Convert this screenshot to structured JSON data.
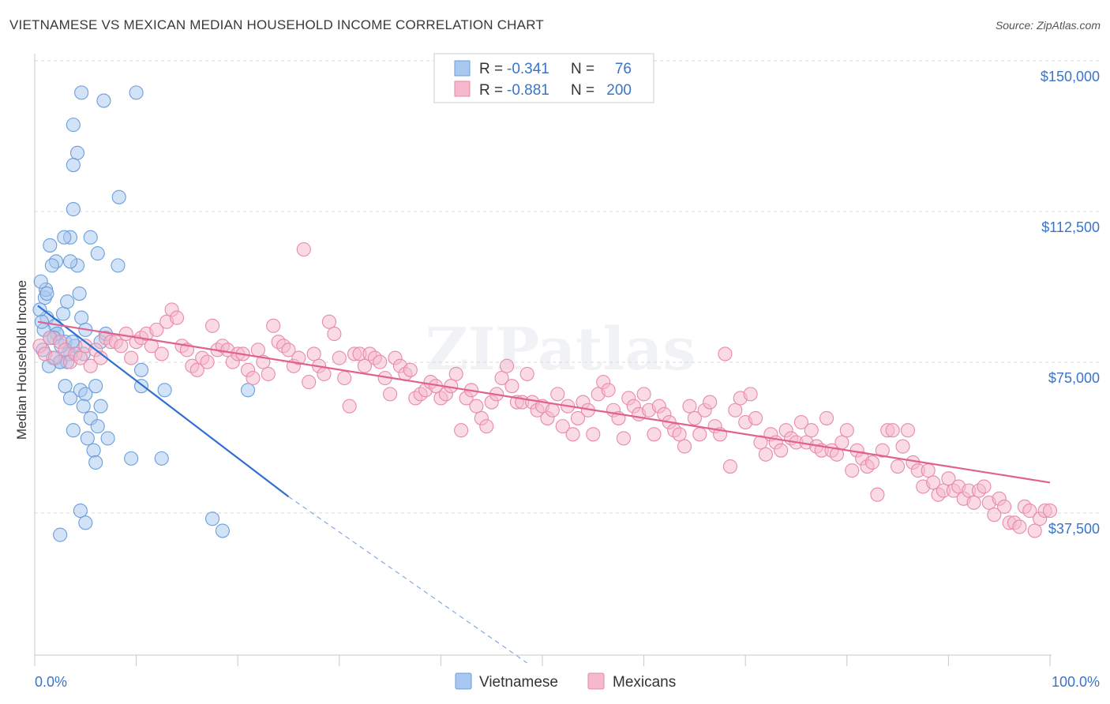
{
  "title": "VIETNAMESE VS MEXICAN MEDIAN HOUSEHOLD INCOME CORRELATION CHART",
  "source": "Source: ZipAtlas.com",
  "watermark": "ZIPatlas",
  "colors": {
    "blue_fill": "#a8c8f0",
    "blue_stroke": "#6a9edb",
    "blue_line": "#2f6fd1",
    "pink_fill": "#f6b8cc",
    "pink_stroke": "#e88aa8",
    "pink_line": "#e0628c",
    "tick_blue": "#3a74c9",
    "grid": "#d9d9d9"
  },
  "legend": {
    "rows": [
      {
        "r_label": "R = ",
        "r_value": "-0.341",
        "n_label": "N = ",
        "n_value": " 76",
        "series": "Vietnamese"
      },
      {
        "r_label": "R = ",
        "r_value": "-0.881",
        "n_label": "N = ",
        "n_value": "200",
        "series": "Mexicans"
      }
    ]
  },
  "bottom_legend": [
    "Vietnamese",
    "Mexicans"
  ],
  "chart_data": {
    "type": "scatter",
    "title": "VIETNAMESE VS MEXICAN MEDIAN HOUSEHOLD INCOME CORRELATION CHART",
    "xlabel": "",
    "ylabel": "Median Household Income",
    "xlim": [
      0,
      100
    ],
    "ylim": [
      0,
      155000
    ],
    "y_ticks": [
      {
        "value": 37500,
        "label": "$37,500"
      },
      {
        "value": 75000,
        "label": "$75,000"
      },
      {
        "value": 112500,
        "label": "$112,500"
      },
      {
        "value": 150000,
        "label": "$150,000"
      }
    ],
    "x_tick_labels": [
      {
        "value": 0,
        "label": "0.0%"
      },
      {
        "value": 100,
        "label": "100.0%"
      }
    ],
    "x_minor_ticks": [
      0,
      10,
      20,
      30,
      40,
      50,
      60,
      70,
      80,
      90,
      100
    ],
    "series": [
      {
        "name": "Vietnamese",
        "r": -0.341,
        "n": 76,
        "trend": {
          "x0": 0.3,
          "y0": 93000,
          "x1": 25,
          "y1": 45500,
          "dash_to_x": 48.5,
          "dash_to_y": 0
        },
        "points": [
          [
            1.2,
            90000
          ],
          [
            1.5,
            85000
          ],
          [
            0.8,
            82000
          ],
          [
            2.0,
            88000
          ],
          [
            1.0,
            95000
          ],
          [
            2.5,
            79000
          ],
          [
            3.0,
            84000
          ],
          [
            1.8,
            80000
          ],
          [
            0.5,
            92000
          ],
          [
            2.2,
            86000
          ],
          [
            3.5,
            81000
          ],
          [
            1.4,
            78000
          ],
          [
            0.9,
            87000
          ],
          [
            2.8,
            91000
          ],
          [
            4.0,
            83000
          ],
          [
            1.1,
            97000
          ],
          [
            0.6,
            99000
          ],
          [
            2.1,
            104000
          ],
          [
            1.7,
            103000
          ],
          [
            3.5,
            110000
          ],
          [
            2.9,
            110000
          ],
          [
            1.5,
            108000
          ],
          [
            4.2,
            103000
          ],
          [
            3.5,
            104000
          ],
          [
            5.5,
            110000
          ],
          [
            6.2,
            106000
          ],
          [
            8.2,
            103000
          ],
          [
            3.8,
            138000
          ],
          [
            6.8,
            144000
          ],
          [
            1.2,
            96000
          ],
          [
            3.2,
            94000
          ],
          [
            4.4,
            96000
          ],
          [
            4.6,
            90000
          ],
          [
            3.8,
            117000
          ],
          [
            4.2,
            131000
          ],
          [
            3.8,
            128000
          ],
          [
            10.0,
            146000
          ],
          [
            4.6,
            146000
          ],
          [
            8.3,
            120000
          ],
          [
            2.2,
            86000
          ],
          [
            5.0,
            87000
          ],
          [
            3.7,
            84000
          ],
          [
            3.3,
            81000
          ],
          [
            4.8,
            81000
          ],
          [
            6.5,
            84000
          ],
          [
            7.0,
            86000
          ],
          [
            3.2,
            79000
          ],
          [
            2.5,
            79000
          ],
          [
            3.0,
            73000
          ],
          [
            4.5,
            72000
          ],
          [
            5.0,
            71000
          ],
          [
            6.0,
            73000
          ],
          [
            3.5,
            70000
          ],
          [
            4.8,
            68000
          ],
          [
            6.5,
            68000
          ],
          [
            5.5,
            65000
          ],
          [
            6.2,
            63000
          ],
          [
            3.8,
            62000
          ],
          [
            5.2,
            60000
          ],
          [
            7.2,
            60000
          ],
          [
            5.8,
            57000
          ],
          [
            6.0,
            54000
          ],
          [
            9.5,
            55000
          ],
          [
            12.5,
            55000
          ],
          [
            10.5,
            73000
          ],
          [
            12.8,
            72000
          ],
          [
            21.0,
            72000
          ],
          [
            10.5,
            77000
          ],
          [
            4.5,
            42000
          ],
          [
            5.0,
            39000
          ],
          [
            2.5,
            36000
          ],
          [
            17.5,
            40000
          ],
          [
            18.5,
            37000
          ],
          [
            0.7,
            89000
          ],
          [
            1.9,
            85000
          ],
          [
            2.6,
            83000
          ]
        ]
      },
      {
        "name": "Mexicans",
        "r": -0.881,
        "n": 200,
        "trend": {
          "x0": 0.3,
          "y0": 89000,
          "x1": 100,
          "y1": 49000
        },
        "points": [
          [
            0.5,
            83000
          ],
          [
            1.0,
            81000
          ],
          [
            1.5,
            85000
          ],
          [
            2.0,
            80000
          ],
          [
            2.5,
            84000
          ],
          [
            3.0,
            82000
          ],
          [
            3.5,
            79000
          ],
          [
            4.0,
            81000
          ],
          [
            4.5,
            80000
          ],
          [
            5.0,
            83000
          ],
          [
            5.5,
            78000
          ],
          [
            6.0,
            82000
          ],
          [
            6.5,
            80000
          ],
          [
            7.0,
            85000
          ],
          [
            7.5,
            84000
          ],
          [
            8.0,
            84000
          ],
          [
            8.5,
            83000
          ],
          [
            9.0,
            86000
          ],
          [
            9.5,
            80000
          ],
          [
            10.0,
            84000
          ],
          [
            10.5,
            85000
          ],
          [
            11.0,
            86000
          ],
          [
            11.5,
            83000
          ],
          [
            12.0,
            87000
          ],
          [
            12.5,
            81000
          ],
          [
            13.0,
            89000
          ],
          [
            13.5,
            92000
          ],
          [
            14.0,
            90000
          ],
          [
            14.5,
            83000
          ],
          [
            15.0,
            82000
          ],
          [
            15.5,
            78000
          ],
          [
            16.0,
            77000
          ],
          [
            16.5,
            80000
          ],
          [
            17.0,
            79000
          ],
          [
            17.5,
            88000
          ],
          [
            18.0,
            82000
          ],
          [
            18.5,
            83000
          ],
          [
            19.0,
            82000
          ],
          [
            19.5,
            79000
          ],
          [
            20.0,
            81000
          ],
          [
            20.5,
            81000
          ],
          [
            21.0,
            77000
          ],
          [
            21.5,
            75000
          ],
          [
            22.0,
            82000
          ],
          [
            22.5,
            79000
          ],
          [
            23.0,
            76000
          ],
          [
            23.5,
            88000
          ],
          [
            24.0,
            84000
          ],
          [
            24.5,
            83000
          ],
          [
            25.0,
            82000
          ],
          [
            25.5,
            78000
          ],
          [
            26.0,
            80000
          ],
          [
            26.5,
            107000
          ],
          [
            27.0,
            74000
          ],
          [
            27.5,
            81000
          ],
          [
            28.0,
            78000
          ],
          [
            28.5,
            76000
          ],
          [
            29.0,
            89000
          ],
          [
            29.5,
            86000
          ],
          [
            30.0,
            80000
          ],
          [
            30.5,
            75000
          ],
          [
            31.0,
            68000
          ],
          [
            31.5,
            81000
          ],
          [
            32.0,
            81000
          ],
          [
            32.5,
            78000
          ],
          [
            33.0,
            81000
          ],
          [
            33.5,
            80000
          ],
          [
            34.0,
            79000
          ],
          [
            34.5,
            75000
          ],
          [
            35.0,
            71000
          ],
          [
            35.5,
            80000
          ],
          [
            36.0,
            78000
          ],
          [
            36.5,
            76000
          ],
          [
            37.0,
            77000
          ],
          [
            37.5,
            70000
          ],
          [
            38.0,
            71000
          ],
          [
            38.5,
            72000
          ],
          [
            39.0,
            74000
          ],
          [
            39.5,
            73000
          ],
          [
            40.0,
            70000
          ],
          [
            40.5,
            71000
          ],
          [
            41.0,
            73000
          ],
          [
            41.5,
            76000
          ],
          [
            42.0,
            62000
          ],
          [
            42.5,
            70000
          ],
          [
            43.0,
            72000
          ],
          [
            43.5,
            68000
          ],
          [
            44.0,
            65000
          ],
          [
            44.5,
            63000
          ],
          [
            45.0,
            69000
          ],
          [
            45.5,
            71000
          ],
          [
            46.0,
            75000
          ],
          [
            46.5,
            78000
          ],
          [
            47.0,
            73000
          ],
          [
            47.5,
            69000
          ],
          [
            48.0,
            69000
          ],
          [
            48.5,
            76000
          ],
          [
            49.0,
            69000
          ],
          [
            49.5,
            67000
          ],
          [
            50.0,
            68000
          ],
          [
            50.5,
            65000
          ],
          [
            51.0,
            67000
          ],
          [
            51.5,
            71000
          ],
          [
            52.0,
            63000
          ],
          [
            52.5,
            68000
          ],
          [
            53.0,
            61000
          ],
          [
            53.5,
            65000
          ],
          [
            54.0,
            69000
          ],
          [
            54.5,
            67000
          ],
          [
            55.0,
            61000
          ],
          [
            55.5,
            71000
          ],
          [
            56.0,
            74000
          ],
          [
            56.5,
            72000
          ],
          [
            57.0,
            67000
          ],
          [
            57.5,
            65000
          ],
          [
            58.0,
            60000
          ],
          [
            58.5,
            70000
          ],
          [
            59.0,
            68000
          ],
          [
            59.5,
            66000
          ],
          [
            60.0,
            71000
          ],
          [
            60.5,
            67000
          ],
          [
            61.0,
            61000
          ],
          [
            61.5,
            68000
          ],
          [
            62.0,
            66000
          ],
          [
            62.5,
            64000
          ],
          [
            63.0,
            62000
          ],
          [
            63.5,
            61000
          ],
          [
            64.0,
            58000
          ],
          [
            64.5,
            68000
          ],
          [
            65.0,
            65000
          ],
          [
            65.5,
            61000
          ],
          [
            66.0,
            67000
          ],
          [
            66.5,
            69000
          ],
          [
            67.0,
            63000
          ],
          [
            67.5,
            61000
          ],
          [
            68.0,
            81000
          ],
          [
            68.5,
            53000
          ],
          [
            69.0,
            67000
          ],
          [
            69.5,
            70000
          ],
          [
            70.0,
            64000
          ],
          [
            70.5,
            71000
          ],
          [
            71.0,
            65000
          ],
          [
            71.5,
            59000
          ],
          [
            72.0,
            56000
          ],
          [
            72.5,
            61000
          ],
          [
            73.0,
            59000
          ],
          [
            73.5,
            57000
          ],
          [
            74.0,
            62000
          ],
          [
            74.5,
            60000
          ],
          [
            75.0,
            59000
          ],
          [
            75.5,
            64000
          ],
          [
            76.0,
            59000
          ],
          [
            76.5,
            62000
          ],
          [
            77.0,
            58000
          ],
          [
            77.5,
            57000
          ],
          [
            78.0,
            65000
          ],
          [
            78.5,
            57000
          ],
          [
            79.0,
            56000
          ],
          [
            79.5,
            59000
          ],
          [
            80.0,
            62000
          ],
          [
            80.5,
            52000
          ],
          [
            81.0,
            57000
          ],
          [
            81.5,
            55000
          ],
          [
            82.0,
            53000
          ],
          [
            82.5,
            54000
          ],
          [
            83.0,
            46000
          ],
          [
            83.5,
            57000
          ],
          [
            84.0,
            62000
          ],
          [
            84.5,
            62000
          ],
          [
            85.0,
            53000
          ],
          [
            85.5,
            58000
          ],
          [
            86.0,
            62000
          ],
          [
            86.5,
            54000
          ],
          [
            87.0,
            52000
          ],
          [
            87.5,
            48000
          ],
          [
            88.0,
            52000
          ],
          [
            88.5,
            49000
          ],
          [
            89.0,
            46000
          ],
          [
            89.5,
            47000
          ],
          [
            90.0,
            50000
          ],
          [
            90.5,
            47000
          ],
          [
            91.0,
            48000
          ],
          [
            91.5,
            45000
          ],
          [
            92.0,
            47000
          ],
          [
            92.5,
            44000
          ],
          [
            93.0,
            47000
          ],
          [
            93.5,
            48000
          ],
          [
            94.0,
            44000
          ],
          [
            94.5,
            41000
          ],
          [
            95.0,
            45000
          ],
          [
            95.5,
            43000
          ],
          [
            96.0,
            39000
          ],
          [
            96.5,
            39000
          ],
          [
            97.0,
            38000
          ],
          [
            97.5,
            43000
          ],
          [
            98.0,
            42000
          ],
          [
            98.5,
            37000
          ],
          [
            99.0,
            40000
          ],
          [
            99.5,
            42000
          ],
          [
            100.0,
            42000
          ]
        ]
      }
    ]
  }
}
